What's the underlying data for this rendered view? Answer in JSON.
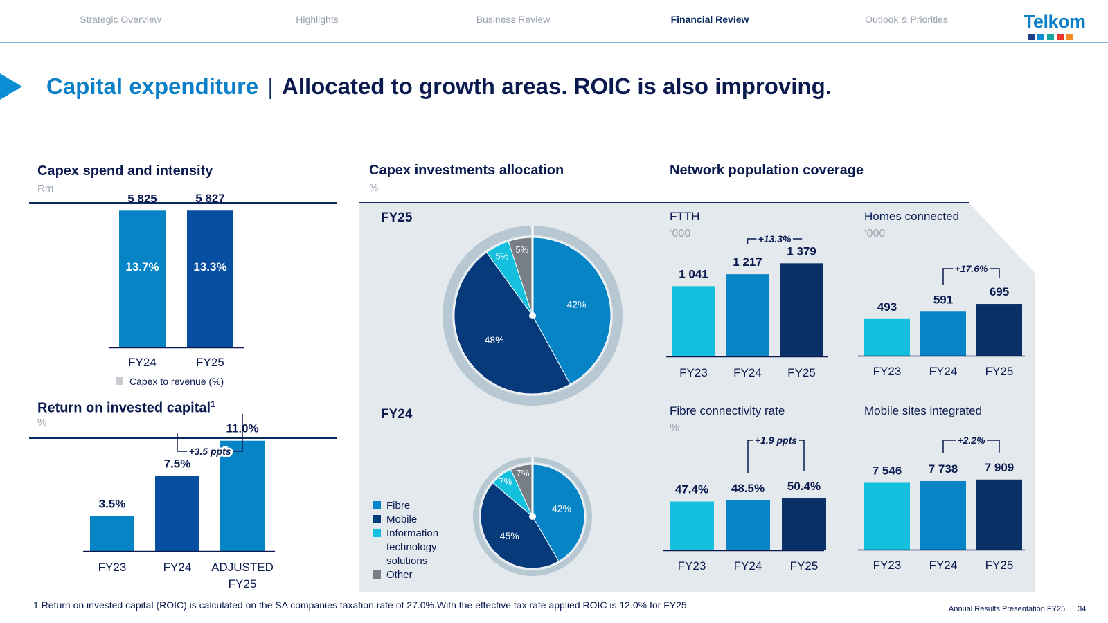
{
  "nav": {
    "items": [
      "Strategic Overview",
      "Highlights",
      "Business Review",
      "Financial Review",
      "Outlook & Priorities"
    ],
    "active": 3
  },
  "logo": {
    "text": "Telkom",
    "dot_colors": [
      "#1c3f8c",
      "#0b8fd4",
      "#12a89a",
      "#e8362b",
      "#f08a24"
    ]
  },
  "title": {
    "main": "Capital expenditure",
    "separator": "|",
    "sub": "Allocated to growth areas. ROIC is also improving."
  },
  "colors": {
    "light": "#14c0de",
    "mid": "#0684c6",
    "dark": "#063a7a",
    "darker": "#0a3068",
    "fy25bar": "#064ea0",
    "grey": "#777e86"
  },
  "chart_data": [
    {
      "id": "capex",
      "type": "bar",
      "title": "Capex spend and intensity",
      "unit": "Rm",
      "categories": [
        "FY24",
        "FY25"
      ],
      "values": [
        5825,
        5827
      ],
      "value_labels": [
        "5 825",
        "5 827"
      ],
      "intensity_labels": [
        "13.7%",
        "13.3%"
      ],
      "legend": "Capex to revenue (%)",
      "ylim": [
        0,
        6600
      ]
    },
    {
      "id": "roic",
      "type": "bar",
      "title": "Return on invested capital",
      "title_sup": "1",
      "unit": "%",
      "categories": [
        "FY23",
        "FY24",
        "ADJUSTED FY25"
      ],
      "category_lines": [
        [
          "FY23"
        ],
        [
          "FY24"
        ],
        [
          "ADJUSTED",
          "FY25"
        ]
      ],
      "values": [
        3.5,
        7.5,
        11.0
      ],
      "value_labels": [
        "3.5%",
        "7.5%",
        "11.0%"
      ],
      "annotation": "+3.5 ppts",
      "ylim": [
        0,
        14.5
      ]
    },
    {
      "id": "alloc",
      "type": "pie",
      "title": "Capex investments allocation",
      "unit": "%",
      "charts": [
        {
          "label": "FY25",
          "slices": [
            42,
            48,
            5,
            5
          ]
        },
        {
          "label": "FY24",
          "slices": [
            42,
            45,
            7,
            7
          ]
        }
      ],
      "legend": [
        "Fibre",
        "Mobile",
        "Information technology solutions",
        "Other"
      ],
      "legend_lines": [
        [
          "Fibre"
        ],
        [
          "Mobile"
        ],
        [
          "Information",
          "technology",
          "solutions"
        ],
        [
          "Other"
        ]
      ]
    },
    {
      "id": "ftth",
      "type": "bar",
      "group_title": "Network population coverage",
      "title": "FTTH",
      "unit": "‘000",
      "categories": [
        "FY23",
        "FY24",
        "FY25"
      ],
      "values": [
        1041,
        1217,
        1379
      ],
      "value_labels": [
        "1 041",
        "1 217",
        "1 379"
      ],
      "annotation": "+13.3%",
      "ylim": [
        0,
        1700
      ]
    },
    {
      "id": "homes",
      "type": "bar",
      "title": "Homes connected",
      "unit": "‘000",
      "categories": [
        "FY23",
        "FY24",
        "FY25"
      ],
      "values": [
        493,
        591,
        695
      ],
      "value_labels": [
        "493",
        "591",
        "695"
      ],
      "annotation": "+17.6%",
      "ylim": [
        0,
        1400
      ]
    },
    {
      "id": "fibre_rate",
      "type": "bar",
      "title": "Fibre connectivity rate",
      "unit": "%",
      "categories": [
        "FY23",
        "FY24",
        "FY25"
      ],
      "values": [
        47.4,
        48.5,
        50.4
      ],
      "value_labels": [
        "47.4%",
        "48.5%",
        "50.4%"
      ],
      "annotation": "+1.9 ppts",
      "ylim": [
        0,
        80
      ]
    },
    {
      "id": "mobile_sites",
      "type": "bar",
      "title": "Mobile sites integrated",
      "unit": "",
      "categories": [
        "FY23",
        "FY24",
        "FY25"
      ],
      "values": [
        7546,
        7738,
        7909
      ],
      "value_labels": [
        "7 546",
        "7 738",
        "7 909"
      ],
      "annotation": "+2.2%",
      "ylim": [
        0,
        11800
      ]
    }
  ],
  "footnote": "1 Return on invested capital (ROIC) is calculated on the SA companies taxation rate of 27.0%.With the effective tax rate applied ROIC is 12.0% for FY25.",
  "footer": {
    "label": "Annual Results Presentation FY25",
    "page": "34"
  }
}
